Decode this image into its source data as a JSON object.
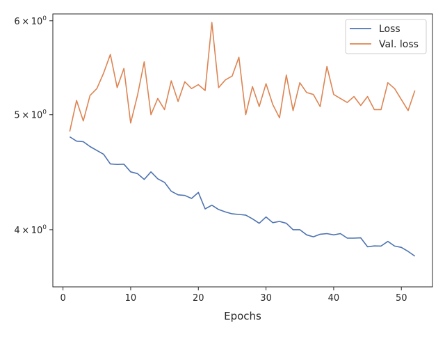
{
  "chart_data": {
    "type": "line",
    "title": "",
    "xlabel": "Epochs",
    "ylabel": "",
    "xlim": [
      -1.5,
      54.6
    ],
    "ylim": [
      3.58,
      6.08
    ],
    "yscale": "log",
    "grid": false,
    "legend_position": "top-right",
    "x_ticks": [
      0,
      10,
      20,
      30,
      40,
      50
    ],
    "x_tick_labels": [
      "0",
      "10",
      "20",
      "30",
      "40",
      "50"
    ],
    "y_ticks": [
      4,
      5,
      6
    ],
    "y_tick_labels": [
      {
        "base": "4",
        "times": "×",
        "power": "10",
        "exp": "0"
      },
      {
        "base": "5",
        "times": "×",
        "power": "10",
        "exp": "0"
      },
      {
        "base": "6",
        "times": "×",
        "power": "10",
        "exp": "0"
      }
    ],
    "x": [
      1,
      2,
      3,
      4,
      5,
      6,
      7,
      8,
      9,
      10,
      11,
      12,
      13,
      14,
      15,
      16,
      17,
      18,
      19,
      20,
      21,
      22,
      23,
      24,
      25,
      26,
      27,
      28,
      29,
      30,
      31,
      32,
      33,
      34,
      35,
      36,
      37,
      38,
      39,
      40,
      41,
      42,
      43,
      44,
      45,
      46,
      47,
      48,
      49,
      50,
      51,
      52
    ],
    "series": [
      {
        "name": "Loss",
        "color": "#4c72b0",
        "values": [
          4.79,
          4.75,
          4.745,
          4.7,
          4.665,
          4.63,
          4.545,
          4.54,
          4.542,
          4.475,
          4.46,
          4.41,
          4.475,
          4.415,
          4.385,
          4.31,
          4.28,
          4.275,
          4.25,
          4.3,
          4.165,
          4.195,
          4.16,
          4.14,
          4.125,
          4.12,
          4.115,
          4.085,
          4.05,
          4.1,
          4.055,
          4.065,
          4.05,
          4.0,
          4.0,
          3.96,
          3.945,
          3.965,
          3.97,
          3.96,
          3.97,
          3.935,
          3.935,
          3.937,
          3.87,
          3.876,
          3.875,
          3.91,
          3.875,
          3.865,
          3.835,
          3.8
        ]
      },
      {
        "name": "Val. loss",
        "color": "#dd8452",
        "values": [
          4.84,
          5.14,
          4.94,
          5.19,
          5.26,
          5.42,
          5.62,
          5.27,
          5.47,
          4.92,
          5.19,
          5.54,
          5.0,
          5.16,
          5.05,
          5.34,
          5.13,
          5.33,
          5.26,
          5.3,
          5.24,
          5.98,
          5.27,
          5.35,
          5.39,
          5.59,
          5.0,
          5.28,
          5.08,
          5.31,
          5.1,
          4.97,
          5.4,
          5.04,
          5.32,
          5.22,
          5.2,
          5.08,
          5.49,
          5.2,
          5.16,
          5.12,
          5.18,
          5.09,
          5.18,
          5.05,
          5.05,
          5.32,
          5.26,
          5.15,
          5.04,
          5.24
        ]
      }
    ]
  }
}
